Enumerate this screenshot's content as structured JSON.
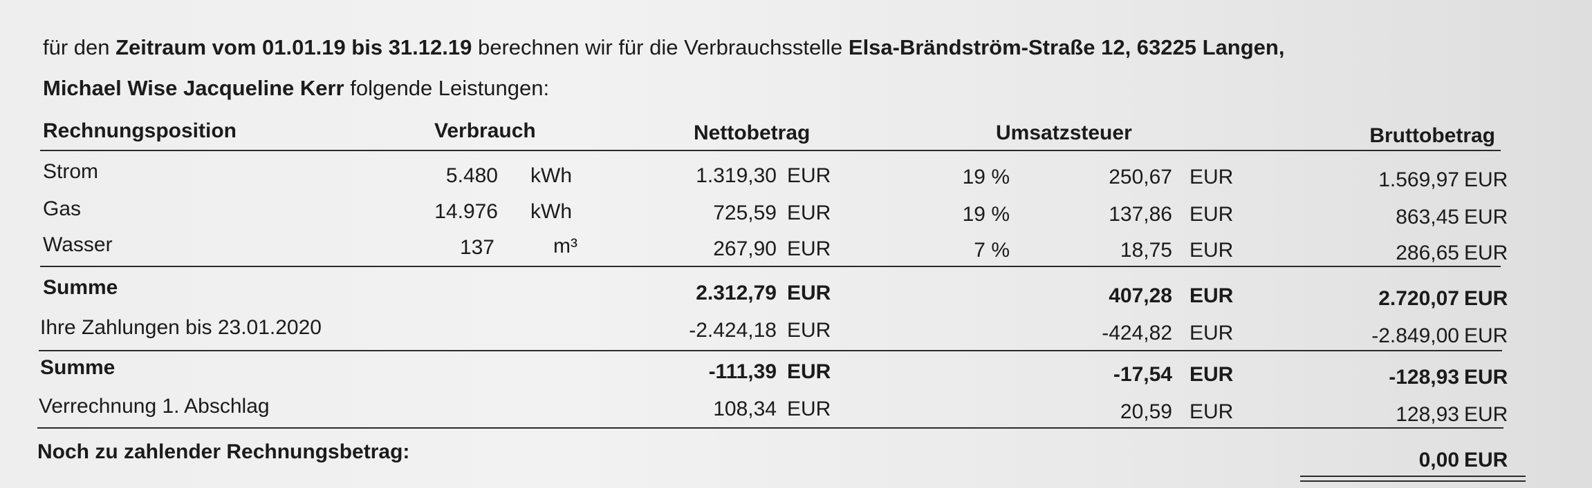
{
  "intro": {
    "l1_a": "für den ",
    "l1_b": "Zeitraum vom 01.01.19 bis 31.12.19",
    "l1_c": " berechnen wir für die Verbrauchsstelle ",
    "l1_d": "Elsa-Brändström-Straße 12, 63225 Langen,",
    "l2_a": "Michael Wise Jacqueline Kerr",
    "l2_b": " folgende Leistungen:"
  },
  "headers": {
    "position": "Rechnungsposition",
    "consumption": "Verbrauch",
    "net": "Nettobetrag",
    "vat": "Umsatzsteuer",
    "gross": "Bruttobetrag"
  },
  "rows": [
    {
      "label": "Strom",
      "qty": "5.480",
      "unit": "kWh",
      "net": "1.319,30",
      "net_cur": "EUR",
      "rate": "19 %",
      "vat": "250,67",
      "vat_cur": "EUR",
      "gross": "1.569,97",
      "gross_cur": "EUR"
    },
    {
      "label": "Gas",
      "qty": "14.976",
      "unit": "kWh",
      "net": "725,59",
      "net_cur": "EUR",
      "rate": "19 %",
      "vat": "137,86",
      "vat_cur": "EUR",
      "gross": "863,45",
      "gross_cur": "EUR"
    },
    {
      "label": "Wasser",
      "qty": "137",
      "unit": "m³",
      "net": "267,90",
      "net_cur": "EUR",
      "rate": "7 %",
      "vat": "18,75",
      "vat_cur": "EUR",
      "gross": "286,65",
      "gross_cur": "EUR"
    }
  ],
  "sum1": {
    "label": "Summe",
    "net": "2.312,79",
    "net_cur": "EUR",
    "vat": "407,28",
    "vat_cur": "EUR",
    "gross": "2.720,07",
    "gross_cur": "EUR"
  },
  "payments": {
    "label": "Ihre Zahlungen bis 23.01.2020",
    "net": "-2.424,18",
    "net_cur": "EUR",
    "vat": "-424,82",
    "vat_cur": "EUR",
    "gross": "-2.849,00",
    "gross_cur": "EUR"
  },
  "sum2": {
    "label": "Summe",
    "net": "-111,39",
    "net_cur": "EUR",
    "vat": "-17,54",
    "vat_cur": "EUR",
    "gross": "-128,93",
    "gross_cur": "EUR"
  },
  "offset": {
    "label": "Verrechnung 1. Abschlag",
    "net": "108,34",
    "net_cur": "EUR",
    "vat": "20,59",
    "vat_cur": "EUR",
    "gross": "128,93",
    "gross_cur": "EUR"
  },
  "due": {
    "label": "Noch zu zahlender Rechnungsbetrag:",
    "amount": "0,00",
    "cur": "EUR"
  }
}
